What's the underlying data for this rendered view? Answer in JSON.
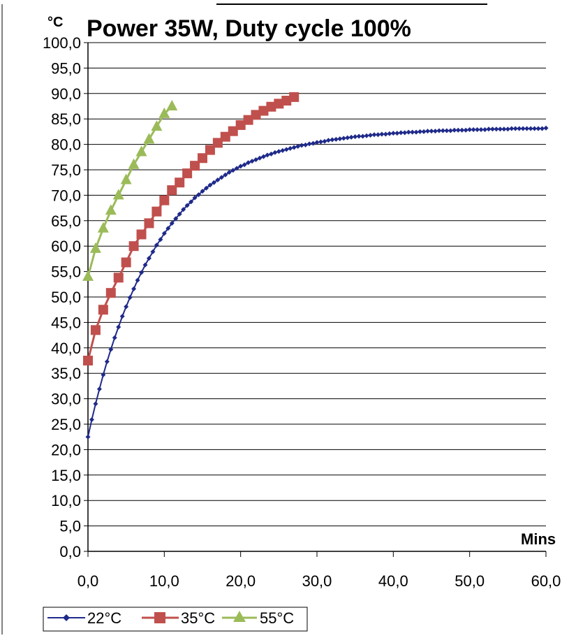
{
  "chart_data": {
    "type": "line",
    "title": "Power 35W, Duty cycle 100%",
    "ylabel": "°C",
    "xlabel": "Mins",
    "xlim": [
      0,
      60
    ],
    "ylim": [
      0,
      100
    ],
    "x_ticks": [
      "0,0",
      "10,0",
      "20,0",
      "30,0",
      "40,0",
      "50,0",
      "60,0"
    ],
    "y_ticks": [
      "0,0",
      "5,0",
      "10,0",
      "15,0",
      "20,0",
      "25,0",
      "30,0",
      "35,0",
      "40,0",
      "45,0",
      "50,0",
      "55,0",
      "60,0",
      "65,0",
      "70,0",
      "75,0",
      "80,0",
      "85,0",
      "90,0",
      "95,0",
      "100,0"
    ],
    "grid": "horizontal",
    "legend_position": "bottom-left",
    "series": [
      {
        "name": "22°C",
        "color": "#1f2a8a",
        "marker": "diamond",
        "x": [
          0,
          0.5,
          1,
          1.5,
          2,
          2.5,
          3,
          3.5,
          4,
          4.5,
          5,
          5.5,
          6,
          6.5,
          7,
          7.5,
          8,
          8.5,
          9,
          9.5,
          10,
          10.5,
          11,
          11.5,
          12,
          12.5,
          13,
          13.5,
          14,
          14.5,
          15,
          15.5,
          16,
          16.5,
          17,
          17.5,
          18,
          18.5,
          19,
          19.5,
          20,
          20.5,
          21,
          21.5,
          22,
          22.5,
          23,
          23.5,
          24,
          24.5,
          25,
          25.5,
          26,
          26.5,
          27,
          27.5,
          28,
          28.5,
          29,
          29.5,
          30,
          30.5,
          31,
          31.5,
          32,
          32.5,
          33,
          33.5,
          34,
          34.5,
          35,
          35.5,
          36,
          36.5,
          37,
          37.5,
          38,
          38.5,
          39,
          39.5,
          40,
          40.5,
          41,
          41.5,
          42,
          42.5,
          43,
          43.5,
          44,
          44.5,
          45,
          45.5,
          46,
          46.5,
          47,
          47.5,
          48,
          48.5,
          49,
          49.5,
          50,
          50.5,
          51,
          51.5,
          52,
          52.5,
          53,
          53.5,
          54,
          54.5,
          55,
          55.5,
          56,
          56.5,
          57,
          57.5,
          58,
          58.5,
          59,
          59.5,
          60
        ],
        "y": [
          22.5,
          25.9,
          29.0,
          31.9,
          34.7,
          37.3,
          39.7,
          42.0,
          44.1,
          46.2,
          48.1,
          49.9,
          51.6,
          53.3,
          54.8,
          56.3,
          57.6,
          58.9,
          60.2,
          61.3,
          62.5,
          63.5,
          64.5,
          65.4,
          66.3,
          67.2,
          68.0,
          68.7,
          69.5,
          70.1,
          70.8,
          71.4,
          72.0,
          72.5,
          73.0,
          73.5,
          74.0,
          74.5,
          74.9,
          75.3,
          75.7,
          76.0,
          76.4,
          76.7,
          77.0,
          77.3,
          77.6,
          77.9,
          78.1,
          78.4,
          78.6,
          78.8,
          79.0,
          79.2,
          79.4,
          79.6,
          79.8,
          79.9,
          80.1,
          80.2,
          80.4,
          80.5,
          80.6,
          80.8,
          80.9,
          81.0,
          81.1,
          81.2,
          81.3,
          81.4,
          81.5,
          81.6,
          81.6,
          81.7,
          81.8,
          81.9,
          81.9,
          82.0,
          82.0,
          82.1,
          82.2,
          82.2,
          82.3,
          82.3,
          82.4,
          82.4,
          82.4,
          82.5,
          82.5,
          82.6,
          82.6,
          82.6,
          82.7,
          82.7,
          82.7,
          82.7,
          82.8,
          82.8,
          82.8,
          82.8,
          82.9,
          82.9,
          82.9,
          82.9,
          82.9,
          83.0,
          83.0,
          83.0,
          83.0,
          83.0,
          83.0,
          83.1,
          83.1,
          83.1,
          83.1,
          83.1,
          83.1,
          83.1,
          83.1,
          83.1,
          83.2
        ]
      },
      {
        "name": "35°C",
        "color": "#c0504d",
        "marker": "square",
        "x": [
          0,
          1,
          2,
          3,
          4,
          5,
          6,
          7,
          8,
          9,
          10,
          11,
          12,
          13,
          14,
          15,
          16,
          17,
          18,
          19,
          20,
          21,
          22,
          23,
          24,
          25,
          26,
          27
        ],
        "y": [
          37.5,
          43.5,
          47.5,
          50.8,
          53.8,
          56.8,
          60.0,
          62.3,
          64.5,
          66.8,
          69.0,
          71.0,
          72.5,
          74.3,
          75.8,
          77.3,
          78.9,
          80.3,
          81.5,
          82.6,
          83.8,
          84.8,
          85.8,
          86.6,
          87.4,
          88.0,
          88.6,
          89.3
        ]
      },
      {
        "name": "55°C",
        "color": "#9bbb59",
        "marker": "triangle",
        "x": [
          0,
          1,
          2,
          3,
          4,
          5,
          6,
          7,
          8,
          9,
          10,
          11
        ],
        "y": [
          54.0,
          59.5,
          63.5,
          67.0,
          70.0,
          73.0,
          76.0,
          78.5,
          81.0,
          83.5,
          86.0,
          87.5
        ]
      }
    ]
  }
}
